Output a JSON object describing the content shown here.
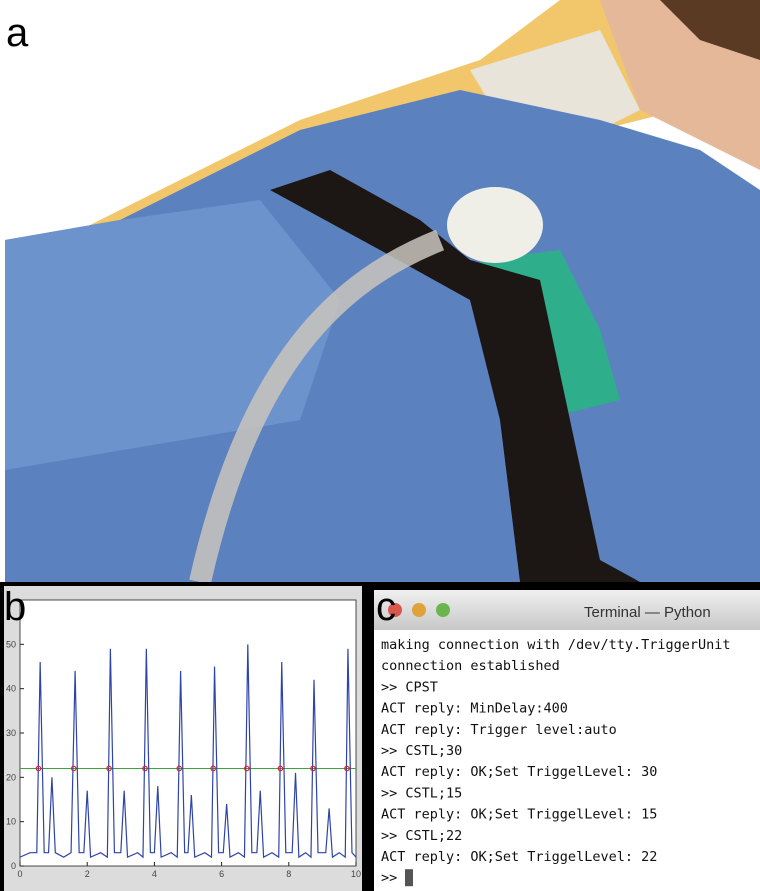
{
  "panel_labels": [
    "a",
    "b",
    "c"
  ],
  "chart_data": {
    "type": "line",
    "x": [
      0,
      0.3,
      0.5,
      0.6,
      0.72,
      0.85,
      0.95,
      1.05,
      1.3,
      1.52,
      1.64,
      1.76,
      1.9,
      2.0,
      2.1,
      2.4,
      2.6,
      2.69,
      2.81,
      3.0,
      3.1,
      3.2,
      3.5,
      3.66,
      3.76,
      3.88,
      4.0,
      4.1,
      4.2,
      4.5,
      4.68,
      4.78,
      4.9,
      5.0,
      5.1,
      5.2,
      5.5,
      5.7,
      5.79,
      5.91,
      6.05,
      6.15,
      6.25,
      6.5,
      6.68,
      6.78,
      6.9,
      7.05,
      7.15,
      7.25,
      7.5,
      7.7,
      7.79,
      7.91,
      8.1,
      8.2,
      8.3,
      8.5,
      8.66,
      8.75,
      8.87,
      9.1,
      9.2,
      9.3,
      9.5,
      9.68,
      9.76,
      9.88,
      10
    ],
    "series": [
      {
        "color": "#2f44a8",
        "values": [
          2,
          3,
          3,
          46,
          3,
          3,
          20,
          3,
          2,
          3,
          44,
          3,
          3,
          17,
          2,
          3,
          2,
          49,
          3,
          3,
          17,
          2,
          3,
          2,
          49,
          3,
          3,
          18,
          2,
          3,
          2,
          44,
          3,
          3,
          16,
          2,
          3,
          2,
          45,
          3,
          3,
          14,
          2,
          3,
          2,
          50,
          3,
          3,
          17,
          2,
          3,
          2,
          46,
          3,
          3,
          21,
          2,
          3,
          2,
          42,
          3,
          3,
          13,
          2,
          3,
          2,
          49,
          3,
          2
        ]
      }
    ],
    "threshold": {
      "value": 22,
      "color": "#3aa63a"
    },
    "markers": {
      "color": "#e02020",
      "x": [
        0.55,
        1.6,
        2.65,
        3.72,
        4.74,
        5.75,
        6.75,
        7.75,
        8.72,
        9.73
      ],
      "values": [
        22,
        22,
        22,
        22,
        22,
        22,
        22,
        22,
        22,
        22
      ]
    },
    "xlim": [
      0,
      10
    ],
    "ylim": [
      0,
      60
    ],
    "xticks": [
      0,
      2,
      4,
      6,
      8,
      10
    ],
    "yticks": [
      0,
      10,
      20,
      30,
      40,
      50
    ]
  },
  "terminal": {
    "title": "Terminal — Python",
    "lines": [
      "making connection with /dev/tty.TriggerUnit",
      "connection established",
      ">> CPST",
      "ACT reply: MinDelay:400",
      "ACT reply: Trigger level:auto",
      ">> CSTL;30",
      "ACT reply: OK;Set TriggelLevel: 30",
      ">> CSTL;15",
      "ACT reply: OK;Set TriggelLevel: 15",
      ">> CSTL;22",
      "ACT reply: OK;Set TriggelLevel: 22"
    ],
    "prompt": ">>"
  }
}
